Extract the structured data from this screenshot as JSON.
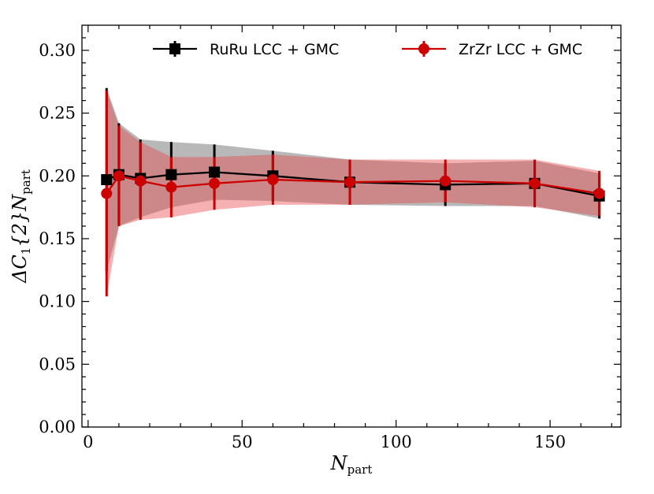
{
  "chart_data": {
    "type": "line",
    "xlabel": "N",
    "xlabel_sub": "part",
    "ylabel_pre": "ΔC",
    "ylabel_sub1": "1",
    "ylabel_mid": "{2}N",
    "ylabel_sub2": "part",
    "xlim": [
      -2,
      173
    ],
    "ylim": [
      0.0,
      0.32
    ],
    "xticks": [
      0,
      50,
      100,
      150
    ],
    "xtick_labels": [
      "0",
      "50",
      "100",
      "150"
    ],
    "yticks": [
      0.0,
      0.05,
      0.1,
      0.15,
      0.2,
      0.25,
      0.3
    ],
    "ytick_labels": [
      "0.00",
      "0.05",
      "0.10",
      "0.15",
      "0.20",
      "0.25",
      "0.30"
    ],
    "grid": false,
    "legend_position": "top",
    "series": [
      {
        "name": "RuRu LCC + GMC",
        "color": "#000000",
        "band_color": "#8c8c8c",
        "marker": "square",
        "x": [
          6,
          10,
          17,
          27,
          41,
          60,
          85,
          116,
          145,
          166
        ],
        "y": [
          0.197,
          0.201,
          0.198,
          0.201,
          0.203,
          0.2,
          0.195,
          0.193,
          0.194,
          0.184
        ],
        "err": [
          0.073,
          0.041,
          0.031,
          0.026,
          0.022,
          0.02,
          0.018,
          0.017,
          0.018,
          0.018
        ]
      },
      {
        "name": "ZrZr LCC + GMC",
        "color": "#cc0000",
        "band_color": "#e84545",
        "marker": "circle",
        "x": [
          6,
          10,
          17,
          27,
          41,
          60,
          85,
          116,
          145,
          166
        ],
        "y": [
          0.186,
          0.2,
          0.196,
          0.191,
          0.194,
          0.197,
          0.195,
          0.196,
          0.194,
          0.186
        ],
        "err": [
          0.082,
          0.04,
          0.031,
          0.024,
          0.021,
          0.02,
          0.018,
          0.017,
          0.019,
          0.018
        ]
      }
    ]
  }
}
